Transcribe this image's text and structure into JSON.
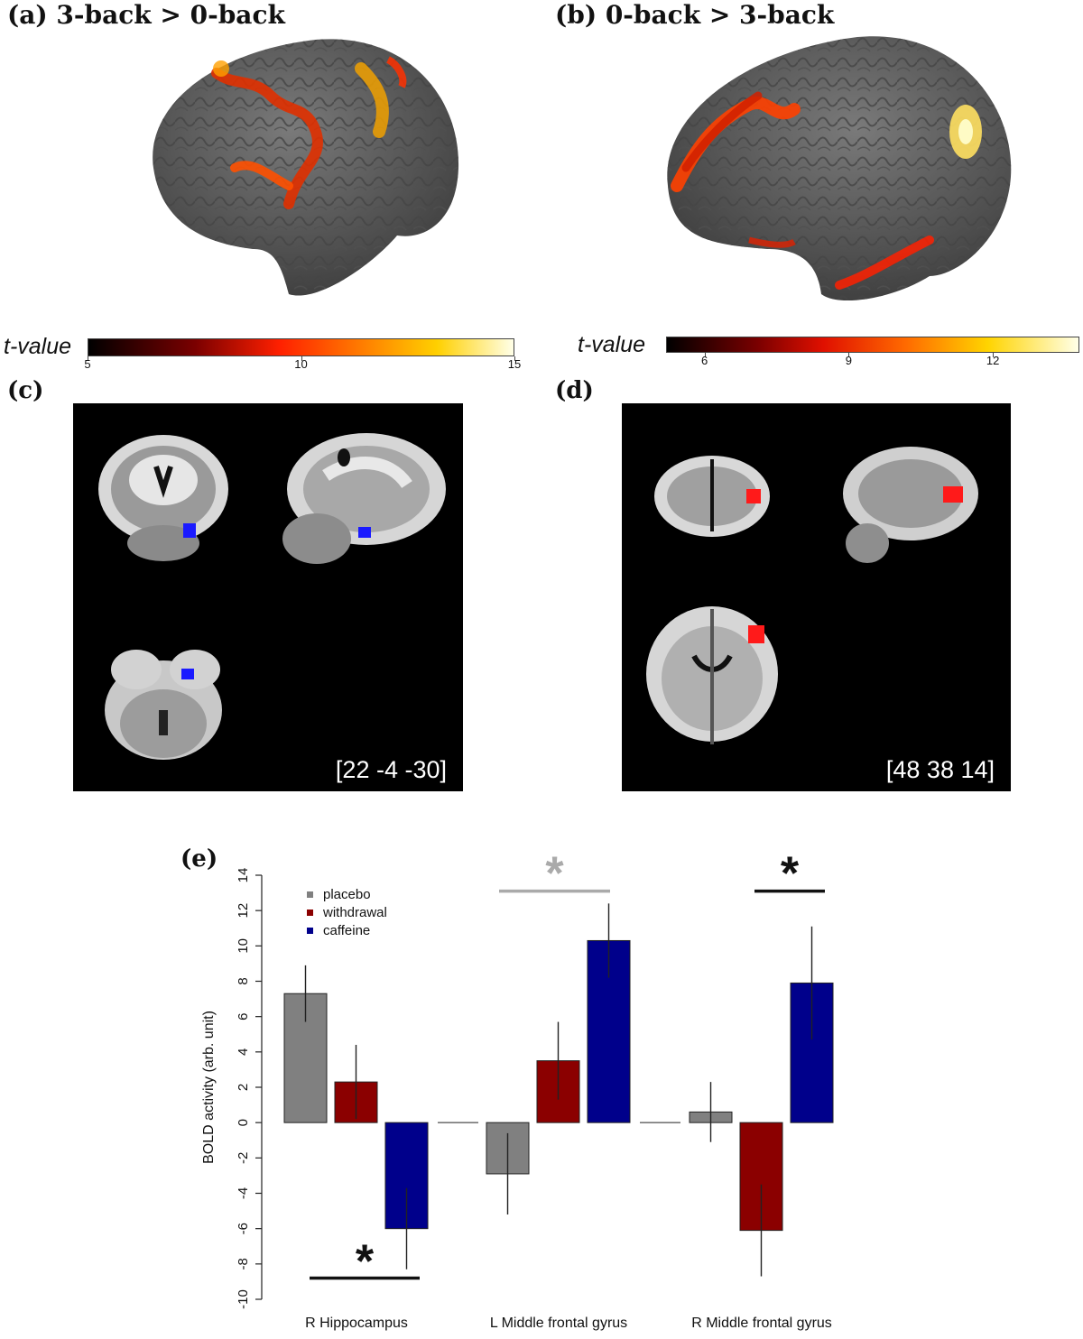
{
  "panel_a": {
    "title": "(a) 3-back > 0-back",
    "colorbar_label": "t-value",
    "ticks": [
      "5",
      "10",
      "15"
    ],
    "tick_values": [
      5,
      10,
      15
    ],
    "range": [
      5,
      15
    ]
  },
  "panel_b": {
    "title": "(b) 0-back > 3-back",
    "colorbar_label": "t-value",
    "ticks": [
      "6",
      "9",
      "12"
    ],
    "tick_values": [
      6,
      9,
      12
    ],
    "range": [
      5.2,
      13.8
    ]
  },
  "panel_c": {
    "letter": "(c)",
    "coord": "[22 -4 -30]",
    "blob_color": "#1a1aff"
  },
  "panel_d": {
    "letter": "(d)",
    "coord": "[48 38 14]",
    "blob_color": "#ff1a1a"
  },
  "chart_data": {
    "panel_letter": "(e)",
    "type": "bar",
    "categories": [
      "R Hippocampus",
      "L Middle frontal gyrus",
      "R Middle frontal gyrus"
    ],
    "series": [
      {
        "name": "placebo",
        "color": "#808080",
        "values": [
          7.3,
          -2.9,
          0.6
        ],
        "err": [
          1.6,
          2.3,
          1.7
        ]
      },
      {
        "name": "withdrawal",
        "color": "#8b0000",
        "values": [
          2.3,
          3.5,
          -6.1
        ],
        "err": [
          2.1,
          2.2,
          2.6
        ]
      },
      {
        "name": "caffeine",
        "color": "#00008b",
        "values": [
          -6.0,
          10.3,
          7.9
        ],
        "err": [
          2.3,
          2.1,
          3.2
        ]
      }
    ],
    "ylabel": "BOLD activity (arb. unit)",
    "ylim": [
      -10,
      14
    ],
    "yticks": [
      "-10",
      "-8",
      "-6",
      "-4",
      "-2",
      "0",
      "2",
      "4",
      "6",
      "8",
      "10",
      "12",
      "14"
    ],
    "ytick_values": [
      -10,
      -8,
      -6,
      -4,
      -2,
      0,
      2,
      4,
      6,
      8,
      10,
      12,
      14
    ],
    "legend_position": "top-left",
    "significance": [
      {
        "category": 0,
        "label": "*",
        "color": "#111111",
        "y": -8.8,
        "placement": "below"
      },
      {
        "category": 1,
        "label": "*",
        "color": "#aaaaaa",
        "y": 13.1,
        "placement": "above"
      },
      {
        "category": 2,
        "label": "*",
        "color": "#111111",
        "y": 13.1,
        "placement": "above"
      }
    ]
  }
}
